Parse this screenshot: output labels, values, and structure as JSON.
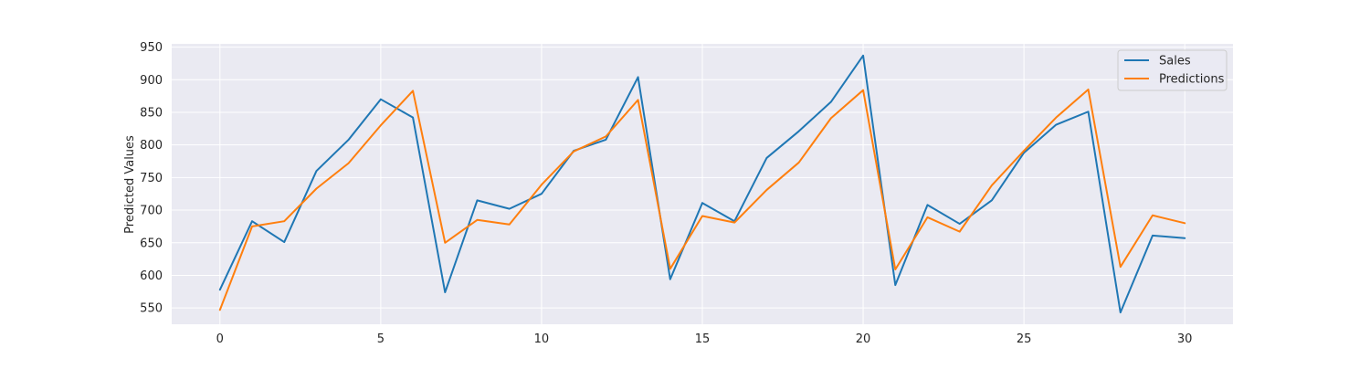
{
  "chart_data": {
    "type": "line",
    "title": "",
    "xlabel": "",
    "ylabel": "Predicted Values",
    "x": [
      0,
      1,
      2,
      3,
      4,
      5,
      6,
      7,
      8,
      9,
      10,
      11,
      12,
      13,
      14,
      15,
      16,
      17,
      18,
      19,
      20,
      21,
      22,
      23,
      24,
      25,
      26,
      27,
      28,
      29,
      30
    ],
    "xlim": [
      -1.5,
      31.5
    ],
    "ylim": [
      525,
      955
    ],
    "xticks": [
      0,
      5,
      10,
      15,
      20,
      25,
      30
    ],
    "yticks": [
      550,
      600,
      650,
      700,
      750,
      800,
      850,
      900,
      950
    ],
    "grid": true,
    "legend_position": "top-right",
    "series": [
      {
        "name": "Sales",
        "color": "#1f77b4",
        "values": [
          578,
          683,
          651,
          760,
          808,
          870,
          842,
          574,
          715,
          702,
          725,
          791,
          808,
          904,
          594,
          711,
          683,
          780,
          821,
          866,
          937,
          585,
          708,
          679,
          715,
          788,
          831,
          851,
          543,
          661,
          657
        ]
      },
      {
        "name": "Predictions",
        "color": "#ff7f0e",
        "values": [
          547,
          675,
          683,
          733,
          772,
          830,
          883,
          650,
          685,
          678,
          739,
          790,
          813,
          869,
          610,
          691,
          681,
          731,
          773,
          841,
          884,
          609,
          689,
          667,
          738,
          791,
          842,
          885,
          613,
          692,
          680
        ]
      }
    ]
  }
}
